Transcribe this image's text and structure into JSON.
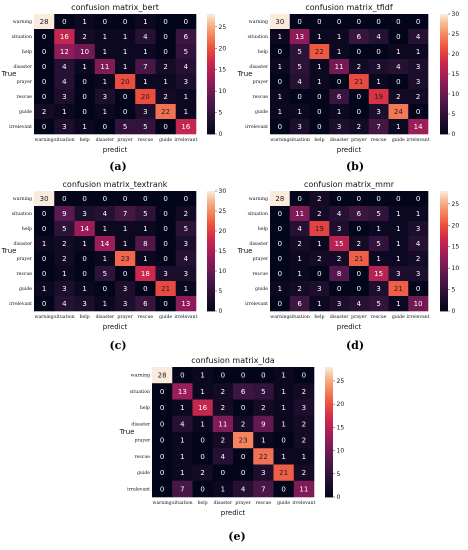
{
  "chart_data": [
    {
      "type": "heatmap",
      "panel_label": "(a)",
      "title": "confusion matrix_bert",
      "xlabel": "predict",
      "ylabel": "True",
      "labels": [
        "warning",
        "situation",
        "help",
        "disaster",
        "prayer",
        "rescue",
        "guide",
        "irrelevant"
      ],
      "colorbar_ticks": [
        0,
        5,
        10,
        15,
        20,
        25
      ],
      "vmax": 28,
      "matrix": [
        [
          28,
          0,
          1,
          0,
          0,
          1,
          0,
          0
        ],
        [
          0,
          16,
          2,
          1,
          1,
          4,
          0,
          6
        ],
        [
          0,
          12,
          10,
          1,
          1,
          1,
          0,
          5
        ],
        [
          0,
          4,
          1,
          11,
          1,
          7,
          2,
          4
        ],
        [
          0,
          4,
          0,
          1,
          20,
          1,
          1,
          3
        ],
        [
          0,
          3,
          0,
          3,
          0,
          20,
          2,
          1
        ],
        [
          2,
          1,
          0,
          1,
          0,
          3,
          22,
          1
        ],
        [
          0,
          3,
          1,
          0,
          5,
          5,
          0,
          16
        ]
      ]
    },
    {
      "type": "heatmap",
      "panel_label": "(b)",
      "title": "confusion matrix_tfidf",
      "xlabel": "predict",
      "ylabel": "True",
      "labels": [
        "warning",
        "situation",
        "help",
        "disaster",
        "prayer",
        "rescue",
        "guide",
        "irrelevant"
      ],
      "colorbar_ticks": [
        0,
        5,
        10,
        15,
        20,
        25,
        30
      ],
      "vmax": 30,
      "matrix": [
        [
          30,
          0,
          0,
          0,
          0,
          0,
          0,
          0
        ],
        [
          1,
          13,
          1,
          1,
          6,
          4,
          0,
          4
        ],
        [
          0,
          5,
          22,
          1,
          0,
          0,
          1,
          1
        ],
        [
          1,
          5,
          1,
          11,
          2,
          3,
          4,
          3
        ],
        [
          0,
          4,
          1,
          0,
          21,
          1,
          0,
          3
        ],
        [
          1,
          0,
          0,
          6,
          0,
          19,
          2,
          2
        ],
        [
          1,
          1,
          0,
          1,
          0,
          3,
          24,
          0
        ],
        [
          0,
          3,
          0,
          3,
          2,
          7,
          1,
          14
        ]
      ]
    },
    {
      "type": "heatmap",
      "panel_label": "(c)",
      "title": "confusion matrix_textrank",
      "xlabel": "predict",
      "ylabel": "True",
      "labels": [
        "warning",
        "situation",
        "help",
        "disaster",
        "prayer",
        "rescue",
        "guide",
        "irrelevant"
      ],
      "colorbar_ticks": [
        0,
        5,
        10,
        15,
        20,
        25,
        30
      ],
      "vmax": 30,
      "matrix": [
        [
          30,
          0,
          0,
          0,
          0,
          0,
          0,
          0
        ],
        [
          0,
          9,
          3,
          4,
          7,
          5,
          0,
          2
        ],
        [
          0,
          5,
          14,
          1,
          1,
          1,
          0,
          5
        ],
        [
          1,
          2,
          1,
          14,
          1,
          8,
          0,
          3
        ],
        [
          0,
          2,
          0,
          1,
          23,
          1,
          0,
          4
        ],
        [
          0,
          1,
          0,
          5,
          0,
          18,
          3,
          3
        ],
        [
          1,
          3,
          1,
          0,
          3,
          0,
          21,
          1
        ],
        [
          0,
          4,
          3,
          1,
          3,
          6,
          0,
          13
        ]
      ]
    },
    {
      "type": "heatmap",
      "panel_label": "(d)",
      "title": "confusion matrix_mmr",
      "xlabel": "predict",
      "ylabel": "True",
      "labels": [
        "warning",
        "situation",
        "help",
        "disaster",
        "prayer",
        "rescue",
        "guide",
        "irrelevant"
      ],
      "colorbar_ticks": [
        0,
        5,
        10,
        15,
        20,
        25
      ],
      "vmax": 28,
      "matrix": [
        [
          28,
          0,
          2,
          0,
          0,
          0,
          0,
          0
        ],
        [
          0,
          11,
          2,
          4,
          6,
          5,
          1,
          1
        ],
        [
          0,
          4,
          19,
          3,
          0,
          1,
          1,
          3
        ],
        [
          0,
          2,
          1,
          15,
          2,
          5,
          1,
          4
        ],
        [
          0,
          1,
          2,
          2,
          21,
          1,
          1,
          2
        ],
        [
          0,
          1,
          0,
          8,
          0,
          15,
          3,
          3
        ],
        [
          1,
          2,
          3,
          0,
          0,
          3,
          21,
          0
        ],
        [
          0,
          6,
          1,
          3,
          4,
          5,
          1,
          10
        ]
      ]
    },
    {
      "type": "heatmap",
      "panel_label": "(e)",
      "title": "confusion matrix_lda",
      "xlabel": "predict",
      "ylabel": "True",
      "labels": [
        "warning",
        "situation",
        "help",
        "disaster",
        "prayer",
        "rescue",
        "guide",
        "irrelevant"
      ],
      "colorbar_ticks": [
        0,
        5,
        10,
        15,
        20,
        25
      ],
      "vmax": 28,
      "matrix": [
        [
          28,
          0,
          1,
          0,
          0,
          0,
          1,
          0
        ],
        [
          0,
          13,
          1,
          2,
          6,
          5,
          1,
          2
        ],
        [
          0,
          1,
          16,
          2,
          0,
          2,
          1,
          3
        ],
        [
          0,
          4,
          1,
          11,
          2,
          9,
          1,
          2
        ],
        [
          0,
          1,
          0,
          2,
          23,
          1,
          0,
          2
        ],
        [
          0,
          1,
          0,
          4,
          0,
          22,
          1,
          1
        ],
        [
          0,
          1,
          2,
          0,
          0,
          3,
          21,
          2
        ],
        [
          0,
          7,
          0,
          1,
          4,
          7,
          0,
          11
        ]
      ]
    }
  ]
}
